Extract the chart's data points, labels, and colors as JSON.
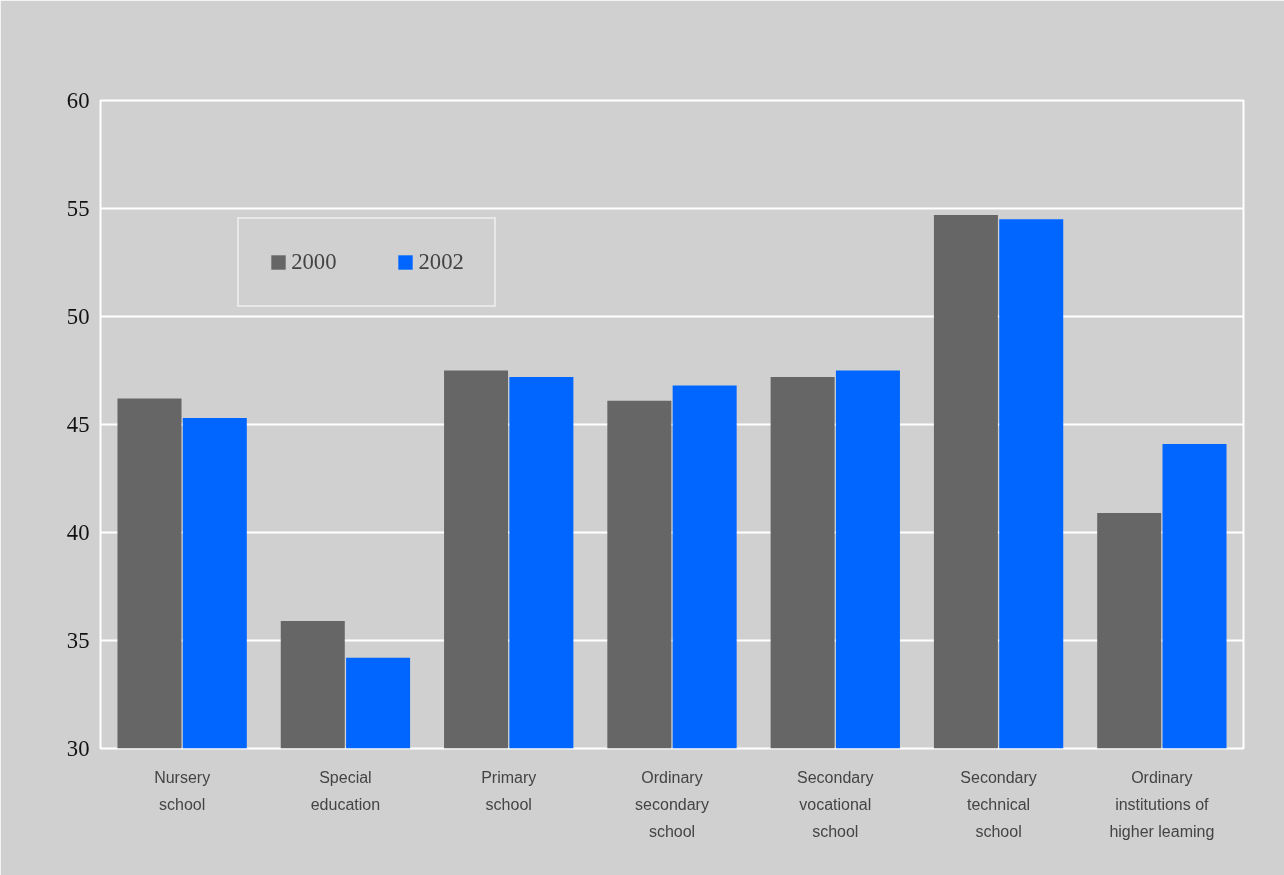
{
  "chart_data": {
    "type": "bar",
    "categories": [
      "Nursery\nschool",
      "Special\neducation",
      "Primary\nschool",
      "Ordinary\nsecondary\nschool",
      "Secondary\nvocational\nschool",
      "Secondary\ntechnical\nschool",
      "Ordinary\ninstitutions of\nhigher leaming"
    ],
    "series": [
      {
        "name": "2000",
        "color": "#666666",
        "values": [
          46.2,
          35.9,
          47.5,
          46.1,
          47.2,
          54.7,
          40.9
        ]
      },
      {
        "name": "2002",
        "color": "#0066ff",
        "values": [
          45.3,
          34.2,
          47.2,
          46.8,
          47.5,
          54.5,
          44.1
        ]
      }
    ],
    "ylim": [
      30,
      60
    ],
    "yticks": [
      30,
      35,
      40,
      45,
      50,
      55,
      60
    ],
    "grid": "y",
    "legend": "top left"
  }
}
